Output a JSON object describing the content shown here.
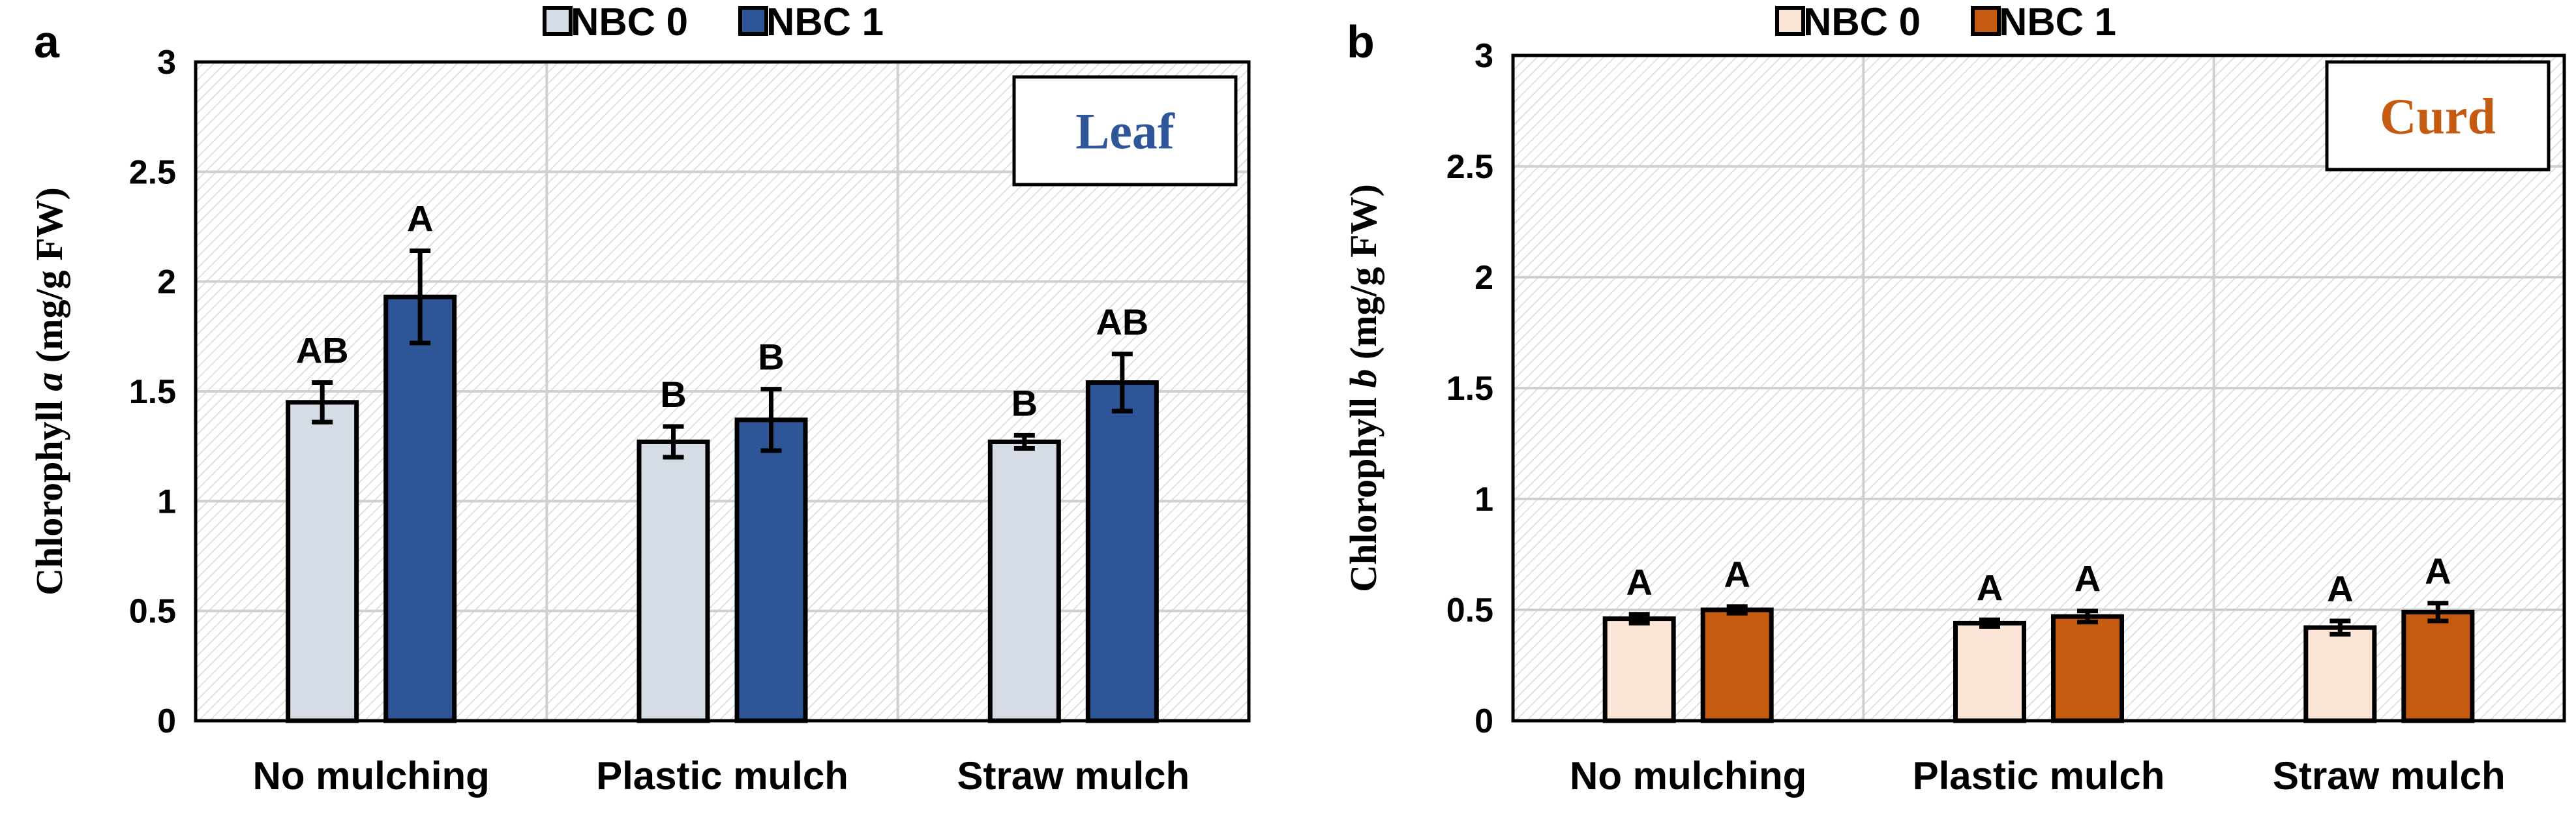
{
  "chart_data": [
    {
      "type": "bar",
      "panel_label": "a",
      "title": "",
      "inset_label": "Leaf",
      "inset_color": "#2E5597",
      "ylabel_prefix": "Chlorophyll ",
      "ylabel_italic": "a",
      "ylabel_suffix": " (mg/g FW)",
      "xlabel": "",
      "ylim": [
        0,
        3
      ],
      "yticks": [
        0,
        0.5,
        1,
        1.5,
        2,
        2.5,
        3
      ],
      "ytick_labels": [
        "0",
        "0.5",
        "1",
        "1.5",
        "2",
        "2.5",
        "3"
      ],
      "grid": true,
      "legend_position": "top-center",
      "categories": [
        "No mulching",
        "Plastic mulch",
        "Straw mulch"
      ],
      "series": [
        {
          "name": "NBC 0",
          "color": "#D6DCE5",
          "values": [
            1.45,
            1.27,
            1.27
          ],
          "errors": [
            0.09,
            0.07,
            0.03
          ],
          "letters": [
            "AB",
            "B",
            "B"
          ]
        },
        {
          "name": "NBC 1",
          "color": "#2E5597",
          "values": [
            1.93,
            1.37,
            1.54
          ],
          "errors": [
            0.21,
            0.14,
            0.13
          ],
          "letters": [
            "A",
            "B",
            "AB"
          ]
        }
      ]
    },
    {
      "type": "bar",
      "panel_label": "b",
      "title": "",
      "inset_label": "Curd",
      "inset_color": "#C55A11",
      "ylabel_prefix": "Chlorophyll ",
      "ylabel_italic": "b",
      "ylabel_suffix": " (mg/g FW)",
      "xlabel": "",
      "ylim": [
        0,
        3
      ],
      "yticks": [
        0,
        0.5,
        1,
        1.5,
        2,
        2.5,
        3
      ],
      "ytick_labels": [
        "0",
        "0.5",
        "1",
        "1.5",
        "2",
        "2.5",
        "3"
      ],
      "grid": true,
      "legend_position": "top-center",
      "categories": [
        "No mulching",
        "Plastic mulch",
        "Straw mulch"
      ],
      "series": [
        {
          "name": "NBC 0",
          "color": "#FBE5D6",
          "values": [
            0.46,
            0.44,
            0.42
          ],
          "errors": [
            0.02,
            0.015,
            0.03
          ],
          "letters": [
            "A",
            "A",
            "A"
          ]
        },
        {
          "name": "NBC 1",
          "color": "#C55A11",
          "values": [
            0.5,
            0.47,
            0.49
          ],
          "errors": [
            0.015,
            0.025,
            0.04
          ],
          "letters": [
            "A",
            "A",
            "A"
          ]
        }
      ]
    }
  ]
}
